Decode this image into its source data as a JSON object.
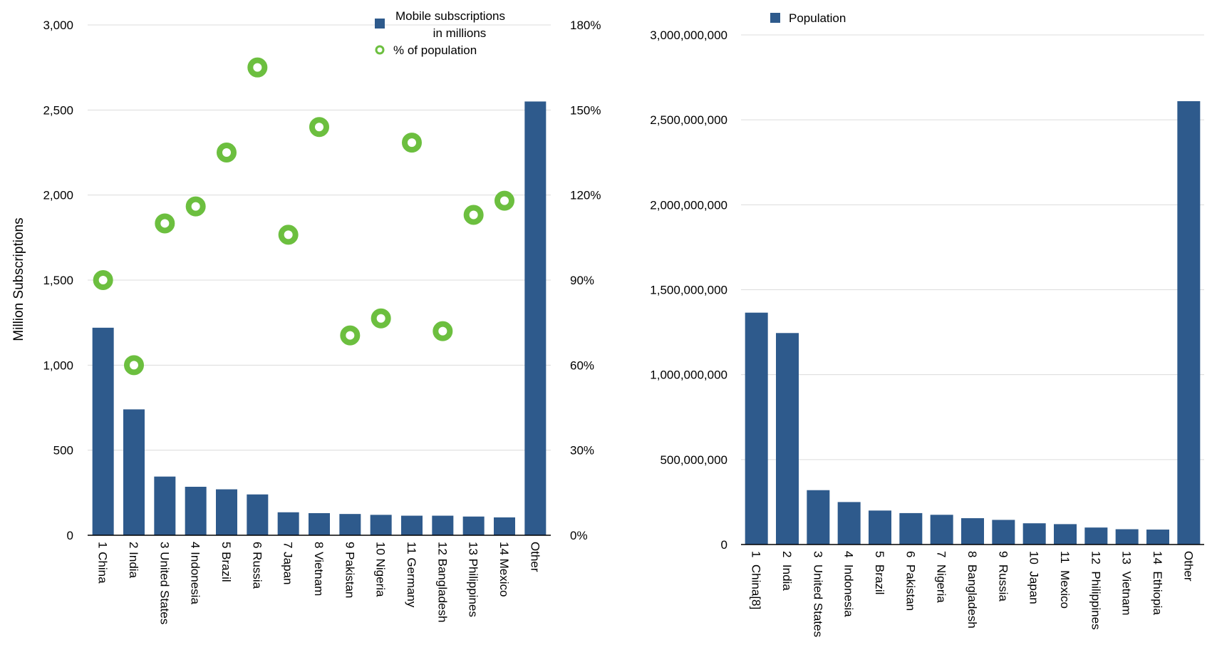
{
  "colors": {
    "bar": "#2e5a8c",
    "dot": "#6cbf3f",
    "grid": "#dcdcdc"
  },
  "chart_data": [
    {
      "type": "bar",
      "ylabel": "Million Subscriptions",
      "ylim": [
        0,
        3000
      ],
      "y_ticks": [
        "0",
        "500",
        "1,000",
        "1,500",
        "2,000",
        "2,500",
        "3,000"
      ],
      "y2lim": [
        0,
        180
      ],
      "y2_ticks": [
        "0%",
        "30%",
        "60%",
        "90%",
        "120%",
        "150%",
        "180%"
      ],
      "legend_position": "top-right",
      "legend": [
        {
          "label_line1": "Mobile subscriptions",
          "label_line2": "in millions",
          "marker": "bar"
        },
        {
          "label_line1": "% of population",
          "label_line2": "",
          "marker": "circle"
        }
      ],
      "categories": [
        "1 China",
        "2 India",
        "3 United States",
        "4 Indonesia",
        "5 Brazil",
        "6 Russia",
        "7 Japan",
        "8 Vietnam",
        "9 Pakistan",
        "10 Nigeria",
        "11 Germany",
        "12 Bangladesh",
        "13 Philippines",
        "14 Mexico",
        "Other"
      ],
      "series": [
        {
          "name": "Mobile subscriptions in millions",
          "axis": "left",
          "kind": "bar",
          "values": [
            1220,
            740,
            345,
            285,
            270,
            240,
            135,
            130,
            125,
            120,
            115,
            115,
            110,
            105,
            2550
          ]
        },
        {
          "name": "% of population",
          "axis": "right",
          "kind": "scatter",
          "values": [
            90,
            60,
            110,
            116,
            135,
            165,
            106,
            144,
            70.5,
            76.5,
            138.5,
            72,
            113,
            118
          ]
        }
      ]
    },
    {
      "type": "bar",
      "ylabel": "",
      "ylim": [
        0,
        3000000000
      ],
      "y_ticks": [
        "0",
        "500,000,000",
        "1,000,000,000",
        "1,500,000,000",
        "2,000,000,000",
        "2,500,000,000",
        "3,000,000,000"
      ],
      "legend_position": "top-left",
      "legend": [
        {
          "label": "Population",
          "marker": "bar"
        }
      ],
      "categories": [
        "1  China[8]",
        "2  India",
        "3  United States",
        "4  Indonesia",
        "5  Brazil",
        "6  Pakistan",
        "7  Nigeria",
        "8  Bangladesh",
        "9  Russia",
        "10  Japan",
        "11  Mexico",
        "12  Philippines",
        "13  Vietnam",
        "14  Ethiopia",
        "Other"
      ],
      "series": [
        {
          "name": "Population",
          "values": [
            1365000000,
            1245000000,
            320000000,
            250000000,
            200000000,
            185000000,
            175000000,
            155000000,
            145000000,
            125000000,
            120000000,
            100000000,
            90000000,
            88000000,
            2610000000
          ]
        }
      ]
    }
  ]
}
